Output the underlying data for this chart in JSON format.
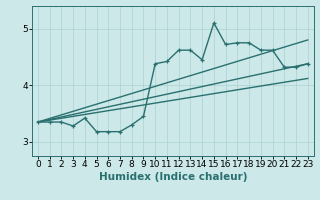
{
  "title": "",
  "xlabel": "Humidex (Indice chaleur)",
  "ylabel": "",
  "bg_color": "#cce8e8",
  "line_color": "#2a7070",
  "grid_color": "#b0d4d4",
  "xlim": [
    -0.5,
    23.5
  ],
  "ylim": [
    2.75,
    5.4
  ],
  "yticks": [
    3,
    4,
    5
  ],
  "xticks": [
    0,
    1,
    2,
    3,
    4,
    5,
    6,
    7,
    8,
    9,
    10,
    11,
    12,
    13,
    14,
    15,
    16,
    17,
    18,
    19,
    20,
    21,
    22,
    23
  ],
  "data_line": [
    [
      0,
      3.35
    ],
    [
      1,
      3.35
    ],
    [
      2,
      3.35
    ],
    [
      3,
      3.28
    ],
    [
      4,
      3.42
    ],
    [
      5,
      3.18
    ],
    [
      6,
      3.18
    ],
    [
      7,
      3.18
    ],
    [
      8,
      3.3
    ],
    [
      9,
      3.45
    ],
    [
      10,
      4.38
    ],
    [
      11,
      4.42
    ],
    [
      12,
      4.62
    ],
    [
      13,
      4.62
    ],
    [
      14,
      4.45
    ],
    [
      15,
      5.1
    ],
    [
      16,
      4.72
    ],
    [
      17,
      4.75
    ],
    [
      18,
      4.75
    ],
    [
      19,
      4.62
    ],
    [
      20,
      4.62
    ],
    [
      21,
      4.32
    ],
    [
      22,
      4.32
    ],
    [
      23,
      4.38
    ]
  ],
  "reg_line1": [
    [
      0,
      3.35
    ],
    [
      23,
      4.38
    ]
  ],
  "reg_line2": [
    [
      0,
      3.35
    ],
    [
      23,
      4.12
    ]
  ],
  "reg_line3": [
    [
      0,
      3.35
    ],
    [
      23,
      4.8
    ]
  ],
  "marker_size": 3.5,
  "line_width": 1.0,
  "xlabel_fontsize": 7.5,
  "tick_fontsize": 6.5
}
